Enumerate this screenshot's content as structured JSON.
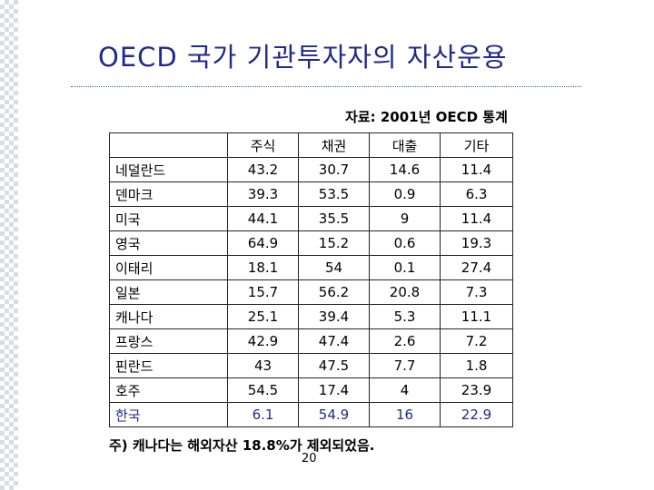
{
  "title": "OECD 국가 기관투자자의 자산운용",
  "source": "자료: 2001년 OECD 통계",
  "table": {
    "columns": [
      "주식",
      "채권",
      "대출",
      "기타"
    ],
    "rows": [
      {
        "country": "네덜란드",
        "values": [
          "43.2",
          "30.7",
          "14.6",
          "11.4"
        ]
      },
      {
        "country": "덴마크",
        "values": [
          "39.3",
          "53.5",
          "0.9",
          "6.3"
        ]
      },
      {
        "country": "미국",
        "values": [
          "44.1",
          "35.5",
          "9",
          "11.4"
        ]
      },
      {
        "country": "영국",
        "values": [
          "64.9",
          "15.2",
          "0.6",
          "19.3"
        ]
      },
      {
        "country": "이태리",
        "values": [
          "18.1",
          "54",
          "0.1",
          "27.4"
        ]
      },
      {
        "country": "일본",
        "values": [
          "15.7",
          "56.2",
          "20.8",
          "7.3"
        ]
      },
      {
        "country": "캐나다",
        "values": [
          "25.1",
          "39.4",
          "5.3",
          "11.1"
        ]
      },
      {
        "country": "프랑스",
        "values": [
          "42.9",
          "47.4",
          "2.6",
          "7.2"
        ]
      },
      {
        "country": "핀란드",
        "values": [
          "43",
          "47.5",
          "7.7",
          "1.8"
        ]
      },
      {
        "country": "호주",
        "values": [
          "54.5",
          "17.4",
          "4",
          "23.9"
        ]
      },
      {
        "country": "한국",
        "values": [
          "6.1",
          "54.9",
          "16",
          "22.9"
        ],
        "highlight": true
      }
    ]
  },
  "footnote": "주) 캐나다는 해외자산 18.8%가 제외되었음.",
  "page_number": "20",
  "colors": {
    "title": "#1f2a8a",
    "highlight": "#1f2a8a"
  }
}
